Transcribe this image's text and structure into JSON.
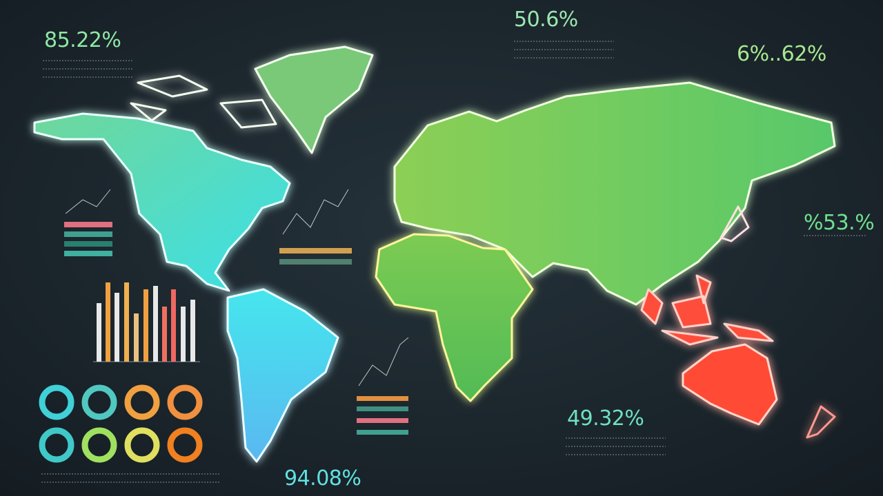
{
  "stats": [
    "85.22%",
    "50.6%",
    "6%..62%",
    "%53.%",
    "49.32%",
    "94.08%"
  ]
}
